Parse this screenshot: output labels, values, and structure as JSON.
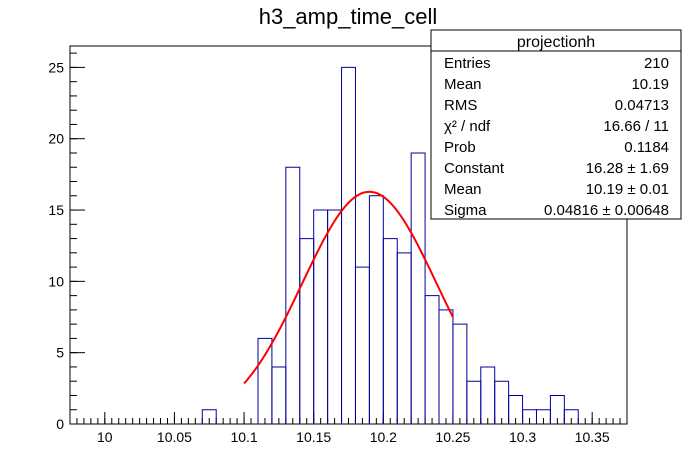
{
  "chart_data": {
    "type": "histogram",
    "title": "h3_amp_time_cell",
    "xlabel": "",
    "ylabel": "",
    "xlim": [
      9.975,
      10.375
    ],
    "ylim": [
      0,
      26.5
    ],
    "bin_width": 0.01,
    "x_ticks": [
      10,
      10.05,
      10.1,
      10.15,
      10.2,
      10.25,
      10.3,
      10.35
    ],
    "x_tick_labels": [
      "10",
      "10.05",
      "10.1",
      "10.15",
      "10.2",
      "10.25",
      "10.3",
      "10.35"
    ],
    "y_ticks": [
      0,
      5,
      10,
      15,
      20,
      25
    ],
    "y_tick_labels": [
      "0",
      "5",
      "10",
      "15",
      "20",
      "25"
    ],
    "x_minor_step": 0.005,
    "y_minor_step": 1,
    "bins": [
      {
        "x_low": 10.07,
        "x_high": 10.08,
        "count": 1
      },
      {
        "x_low": 10.11,
        "x_high": 10.12,
        "count": 6
      },
      {
        "x_low": 10.12,
        "x_high": 10.13,
        "count": 4
      },
      {
        "x_low": 10.13,
        "x_high": 10.14,
        "count": 18
      },
      {
        "x_low": 10.14,
        "x_high": 10.15,
        "count": 13
      },
      {
        "x_low": 10.15,
        "x_high": 10.16,
        "count": 15
      },
      {
        "x_low": 10.16,
        "x_high": 10.17,
        "count": 15
      },
      {
        "x_low": 10.17,
        "x_high": 10.18,
        "count": 25
      },
      {
        "x_low": 10.18,
        "x_high": 10.19,
        "count": 11
      },
      {
        "x_low": 10.19,
        "x_high": 10.2,
        "count": 16
      },
      {
        "x_low": 10.2,
        "x_high": 10.21,
        "count": 13
      },
      {
        "x_low": 10.21,
        "x_high": 10.22,
        "count": 12
      },
      {
        "x_low": 10.22,
        "x_high": 10.23,
        "count": 19
      },
      {
        "x_low": 10.23,
        "x_high": 10.24,
        "count": 9
      },
      {
        "x_low": 10.24,
        "x_high": 10.25,
        "count": 8
      },
      {
        "x_low": 10.25,
        "x_high": 10.26,
        "count": 7
      },
      {
        "x_low": 10.26,
        "x_high": 10.27,
        "count": 3
      },
      {
        "x_low": 10.27,
        "x_high": 10.28,
        "count": 4
      },
      {
        "x_low": 10.28,
        "x_high": 10.29,
        "count": 3
      },
      {
        "x_low": 10.29,
        "x_high": 10.3,
        "count": 2
      },
      {
        "x_low": 10.3,
        "x_high": 10.31,
        "count": 1
      },
      {
        "x_low": 10.31,
        "x_high": 10.32,
        "count": 1
      },
      {
        "x_low": 10.32,
        "x_high": 10.33,
        "count": 2
      },
      {
        "x_low": 10.33,
        "x_high": 10.34,
        "count": 1
      }
    ],
    "fit": {
      "function": "gaus",
      "constant": 16.28,
      "mean": 10.19,
      "sigma": 0.04816,
      "x_range": [
        10.1,
        10.25
      ],
      "color": "#ff0000"
    },
    "histogram_color": "#000099",
    "grid": false,
    "legend": {
      "placement": "top-right",
      "title": "projectionh",
      "rows": [
        {
          "label": "Entries",
          "value": "210"
        },
        {
          "label": "Mean",
          "value": "10.19"
        },
        {
          "label": "RMS",
          "value": "0.04713"
        },
        {
          "label": "χ² / ndf",
          "value": "16.66 / 11"
        },
        {
          "label": "Prob",
          "value": "0.1184"
        },
        {
          "label": "Constant",
          "value": "16.28 ± 1.69"
        },
        {
          "label": "Mean",
          "value": "10.19 ± 0.01"
        },
        {
          "label": "Sigma",
          "value": "0.04816 ± 0.00648"
        }
      ]
    }
  }
}
